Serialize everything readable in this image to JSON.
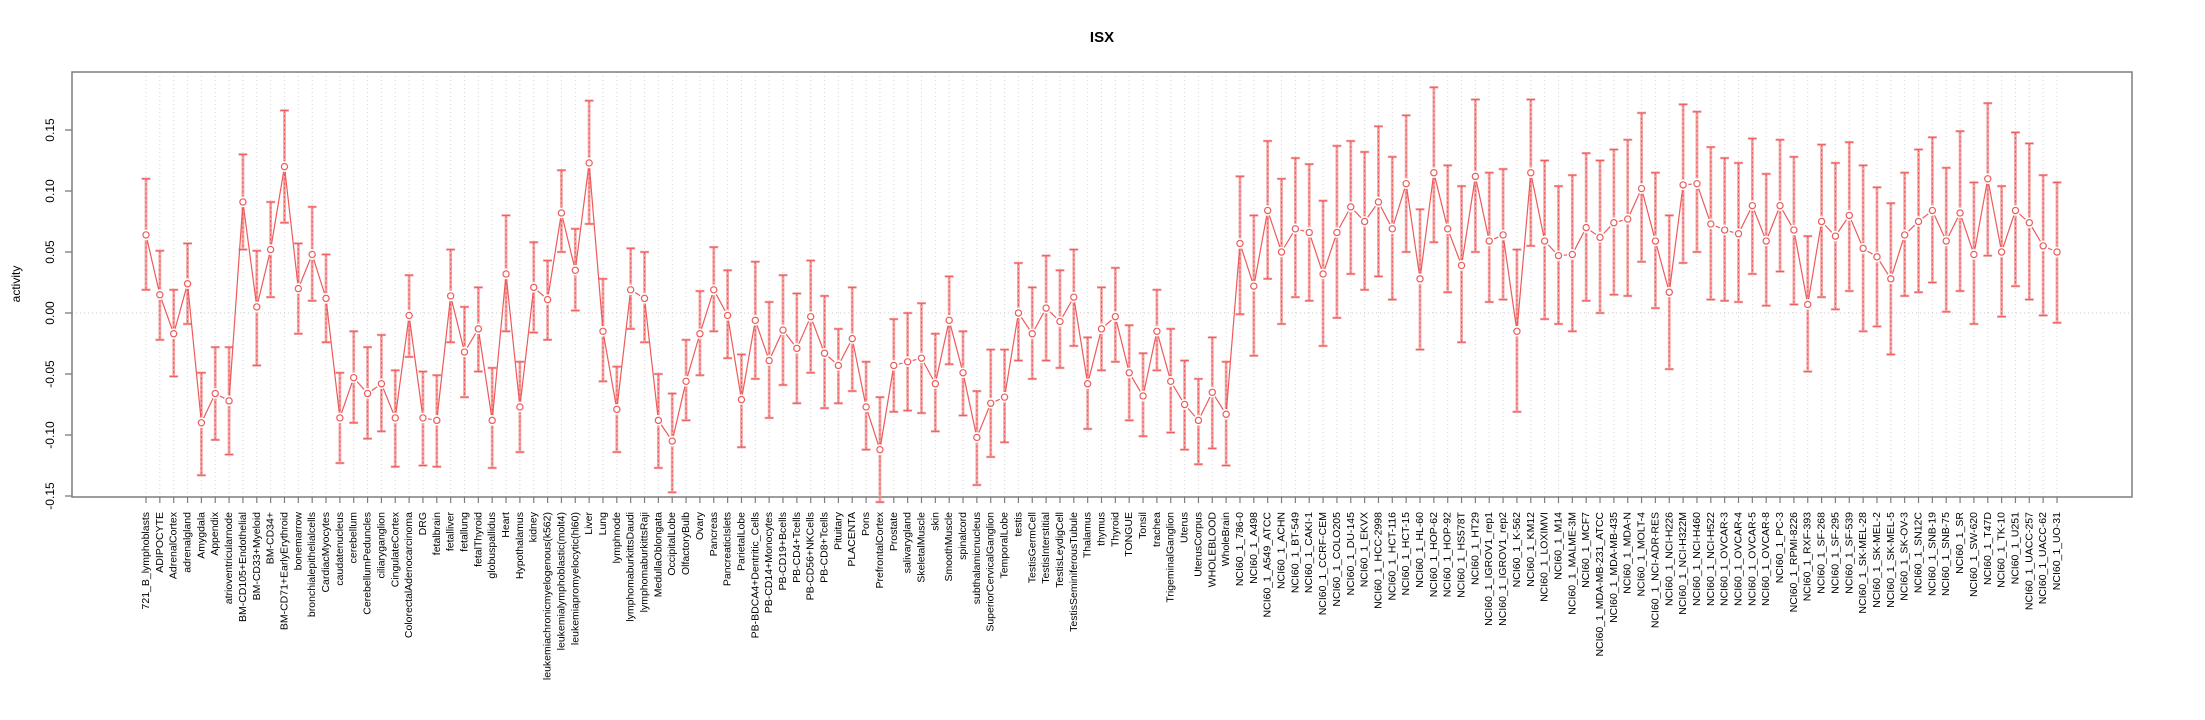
{
  "title": "ISX",
  "chart_data": {
    "type": "line",
    "subtype": "point-estimates-with-error-bars",
    "title": "ISX",
    "xlabel": "",
    "ylabel": "activity",
    "ylim": [
      -0.151,
      0.198
    ],
    "ytick_values": [
      -0.15,
      -0.1,
      -0.05,
      0.0,
      0.05,
      0.1,
      0.15
    ],
    "ytick_labels": [
      "-0.15",
      "-0.10",
      "-0.05",
      "0.00",
      "0.05",
      "0.10",
      "0.15"
    ],
    "grid": "vertical dotted gridline at every category; horizontal dotted line at zero",
    "legend_position": "none",
    "series_name": "activity",
    "categories": [
      "721_B_lymphoblasts",
      "ADIPOCYTE",
      "AdrenalCortex",
      "adrenalgland",
      "Amygdala",
      "Appendix",
      "atrioventricularnode",
      "BM-CD105+Endothelial",
      "BM-CD33+Myeloid",
      "BM-CD34+",
      "BM-CD71+EarlyErythroid",
      "bonemarrow",
      "bronchialepithelialcells",
      "CardiacMyocytes",
      "caudatenucleus",
      "cerebellum",
      "CerebellumPeduncles",
      "ciliaryganglion",
      "CingulateCortex",
      "ColorectalAdenocarcinoma",
      "DRG",
      "fetalbrain",
      "fetalliver",
      "fetallung",
      "fetalThyroid",
      "globuspallidus",
      "Heart",
      "Hypothalamus",
      "kidney",
      "leukemiachronicmyelogenous(k562)",
      "leukemialymphoblastic(molt4)",
      "leukemiapromyelocytic(hl60)",
      "Liver",
      "Lung",
      "lymphnode",
      "lymphomaburkittsDaudi",
      "lymphomaburkittsRaji",
      "MedullaOblongata",
      "OccipitalLobe",
      "OlfactoryBulb",
      "Ovary",
      "Pancreas",
      "PancreaticIslets",
      "ParietalLobe",
      "PB-BDCA4+Dentritic_Cells",
      "PB-CD14+Monocytes",
      "PB-CD19+Bcells",
      "PB-CD4+Tcells",
      "PB-CD56+NKCells",
      "PB-CD8+Tcells",
      "Pituitary",
      "PLACENTA",
      "Pons",
      "PrefrontalCortex",
      "Prostate",
      "salivarygland",
      "SkeletalMuscle",
      "skin",
      "SmoothMuscle",
      "spinalcord",
      "subthalamicnucleus",
      "SuperiorCervicalGanglion",
      "TemporalLobe",
      "testis",
      "TestisGermCell",
      "TestisInterstitial",
      "TestisLeydigCell",
      "TestisSeminiferousTubule",
      "Thalamus",
      "thymus",
      "Thyroid",
      "TONGUE",
      "Tonsil",
      "trachea",
      "TrigeminalGanglion",
      "Uterus",
      "UterusCorpus",
      "WHOLEBLOOD",
      "WholeBrain",
      "NCI60_1_786-0",
      "NCI60_1_A498",
      "NCI60_1_A549_ATCC",
      "NCI60_1_ACHN",
      "NCI60_1_BT-549",
      "NCI60_1_CAKI-1",
      "NCI60_1_CCRF-CEM",
      "NCI60_1_COLO205",
      "NCI60_1_DU-145",
      "NCI60_1_EKVX",
      "NCI60_1_HCC-2998",
      "NCI60_1_HCT-116",
      "NCI60_1_HCT-15",
      "NCI60_1_HL-60",
      "NCI60_1_HOP-62",
      "NCI60_1_HOP-92",
      "NCI60_1_HS578T",
      "NCI60_1_HT29",
      "NCI60_1_IGROV1_rep1",
      "NCI60_1_IGROV1_rep2",
      "NCI60_1_K-562",
      "NCI60_1_KM12",
      "NCI60_1_LOXIMVI",
      "NCI60_1_M14",
      "NCI60_1_MALME-3M",
      "NCI60_1_MCF7",
      "NCI60_1_MDA-MB-231_ATCC",
      "NCI60_1_MDA-MB-435",
      "NCI60_1_MDA-N",
      "NCI60_1_MOLT-4",
      "NCI60_1_NCI-ADR-RES",
      "NCI60_1_NCI-H226",
      "NCI60_1_NCI-H322M",
      "NCI60_1_NCI-H460",
      "NCI60_1_NCI-H522",
      "NCI60_1_OVCAR-3",
      "NCI60_1_OVCAR-4",
      "NCI60_1_OVCAR-5",
      "NCI60_1_OVCAR-8",
      "NCI60_1_PC-3",
      "NCI60_1_RPMI-8226",
      "NCI60_1_RXF-393",
      "NCI60_1_SF-268",
      "NCI60_1_SF-295",
      "NCI60_1_SF-539",
      "NCI60_1_SK-MEL-28",
      "NCI60_1_SK-MEL-2",
      "NCI60_1_SK-MEL-5",
      "NCI60_1_SK-OV-3",
      "NCI60_1_SN12C",
      "NCI60_1_SNB-19",
      "NCI60_1_SNB-75",
      "NCI60_1_SR",
      "NCI60_1_SW-620",
      "NCI60_1_T47D",
      "NCI60_1_TK-10",
      "NCI60_1_U251",
      "NCI60_1_UACC-257",
      "NCI60_1_UACC-62",
      "NCI60_1_UO-31"
    ],
    "values": [
      0.064,
      0.015,
      -0.017,
      0.024,
      -0.09,
      -0.066,
      -0.072,
      0.091,
      0.005,
      0.052,
      0.12,
      0.02,
      0.048,
      0.012,
      -0.086,
      -0.053,
      -0.066,
      -0.058,
      -0.086,
      -0.002,
      -0.086,
      -0.088,
      0.014,
      -0.032,
      -0.013,
      -0.088,
      0.032,
      -0.077,
      0.021,
      0.011,
      0.082,
      0.035,
      0.123,
      -0.015,
      -0.079,
      0.019,
      0.012,
      -0.088,
      -0.105,
      -0.056,
      -0.017,
      0.019,
      -0.002,
      -0.071,
      -0.006,
      -0.039,
      -0.014,
      -0.029,
      -0.003,
      -0.033,
      -0.043,
      -0.021,
      -0.077,
      -0.112,
      -0.043,
      -0.04,
      -0.037,
      -0.058,
      -0.006,
      -0.049,
      -0.102,
      -0.074,
      -0.069,
      0.0,
      -0.017,
      0.004,
      -0.007,
      0.013,
      -0.058,
      -0.013,
      -0.003,
      -0.049,
      -0.068,
      -0.015,
      -0.056,
      -0.075,
      -0.088,
      -0.065,
      -0.083,
      0.057,
      0.022,
      0.084,
      0.05,
      0.069,
      0.066,
      0.032,
      0.066,
      0.087,
      0.075,
      0.091,
      0.069,
      0.106,
      0.028,
      0.115,
      0.069,
      0.039,
      0.112,
      0.059,
      0.064,
      -0.015,
      0.115,
      0.059,
      0.047,
      0.048,
      0.07,
      0.062,
      0.074,
      0.077,
      0.102,
      0.059,
      0.017,
      0.105,
      0.106,
      0.073,
      0.068,
      0.065,
      0.088,
      0.059,
      0.088,
      0.068,
      0.007,
      0.075,
      0.063,
      0.08,
      0.053,
      0.046,
      0.028,
      0.064,
      0.075,
      0.084,
      0.059,
      0.082,
      0.048,
      0.11,
      0.05,
      0.084,
      0.074,
      0.055,
      0.05
    ],
    "ci_low": [
      0.019,
      -0.022,
      -0.052,
      -0.009,
      -0.133,
      -0.104,
      -0.116,
      0.052,
      -0.043,
      0.013,
      0.074,
      -0.017,
      0.01,
      -0.024,
      -0.123,
      -0.09,
      -0.103,
      -0.097,
      -0.126,
      -0.036,
      -0.125,
      -0.126,
      -0.024,
      -0.069,
      -0.048,
      -0.127,
      -0.015,
      -0.114,
      -0.016,
      -0.022,
      0.05,
      0.002,
      0.073,
      -0.056,
      -0.114,
      -0.013,
      -0.024,
      -0.127,
      -0.147,
      -0.088,
      -0.051,
      -0.015,
      -0.037,
      -0.11,
      -0.054,
      -0.086,
      -0.059,
      -0.074,
      -0.049,
      -0.078,
      -0.074,
      -0.064,
      -0.112,
      -0.155,
      -0.081,
      -0.08,
      -0.082,
      -0.097,
      -0.042,
      -0.084,
      -0.141,
      -0.118,
      -0.106,
      -0.039,
      -0.054,
      -0.039,
      -0.045,
      -0.027,
      -0.095,
      -0.047,
      -0.04,
      -0.088,
      -0.101,
      -0.047,
      -0.098,
      -0.112,
      -0.124,
      -0.111,
      -0.125,
      -0.001,
      -0.035,
      0.028,
      -0.009,
      0.013,
      0.01,
      -0.027,
      -0.004,
      0.032,
      0.019,
      0.03,
      0.011,
      0.05,
      -0.03,
      0.058,
      0.017,
      -0.024,
      0.05,
      0.009,
      0.011,
      -0.081,
      0.055,
      -0.005,
      -0.009,
      -0.015,
      0.01,
      0.0,
      0.015,
      0.014,
      0.042,
      0.004,
      -0.046,
      0.041,
      0.05,
      0.011,
      0.01,
      0.009,
      0.032,
      0.006,
      0.034,
      0.007,
      -0.048,
      0.013,
      0.003,
      0.018,
      -0.015,
      -0.011,
      -0.034,
      0.014,
      0.017,
      0.025,
      0.001,
      0.018,
      -0.009,
      0.047,
      -0.003,
      0.022,
      0.011,
      -0.002,
      -0.008
    ],
    "ci_high": [
      0.11,
      0.051,
      0.019,
      0.057,
      -0.049,
      -0.028,
      -0.028,
      0.13,
      0.051,
      0.091,
      0.166,
      0.057,
      0.087,
      0.048,
      -0.049,
      -0.015,
      -0.028,
      -0.018,
      -0.047,
      0.031,
      -0.048,
      -0.051,
      0.052,
      0.005,
      0.021,
      -0.045,
      0.08,
      -0.04,
      0.058,
      0.043,
      0.117,
      0.069,
      0.174,
      0.028,
      -0.044,
      0.053,
      0.05,
      -0.05,
      -0.066,
      -0.022,
      0.018,
      0.054,
      0.035,
      -0.034,
      0.042,
      0.009,
      0.031,
      0.016,
      0.043,
      0.014,
      -0.013,
      0.021,
      -0.04,
      -0.069,
      -0.005,
      0.0,
      0.008,
      -0.017,
      0.03,
      -0.015,
      -0.064,
      -0.03,
      -0.03,
      0.041,
      0.021,
      0.047,
      0.035,
      0.052,
      -0.02,
      0.021,
      0.037,
      -0.01,
      -0.033,
      0.019,
      -0.013,
      -0.039,
      -0.054,
      -0.02,
      -0.04,
      0.112,
      0.08,
      0.141,
      0.11,
      0.127,
      0.122,
      0.092,
      0.137,
      0.141,
      0.132,
      0.153,
      0.128,
      0.162,
      0.085,
      0.185,
      0.121,
      0.104,
      0.175,
      0.115,
      0.118,
      0.052,
      0.175,
      0.125,
      0.104,
      0.113,
      0.131,
      0.125,
      0.134,
      0.142,
      0.164,
      0.115,
      0.08,
      0.171,
      0.165,
      0.136,
      0.127,
      0.123,
      0.143,
      0.114,
      0.142,
      0.128,
      0.063,
      0.138,
      0.123,
      0.14,
      0.121,
      0.103,
      0.09,
      0.115,
      0.134,
      0.144,
      0.119,
      0.149,
      0.107,
      0.172,
      0.104,
      0.148,
      0.139,
      0.113,
      0.107
    ]
  },
  "colors": {
    "series": "#ee5a5a",
    "error_bar_light": "#f4a6a6",
    "marker_fill": "#ffffff",
    "gridline": "#d4d4d4",
    "zero_line": "#cccccc",
    "plot_border": "#7d7d7d",
    "text": "#000000"
  }
}
